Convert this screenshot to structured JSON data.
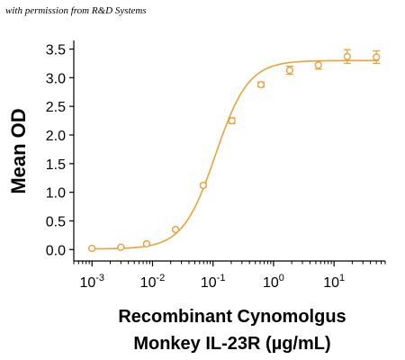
{
  "credit": "with permission from R&D Systems",
  "colors": {
    "series": "#E8A33D",
    "axis": "#000000"
  },
  "chart_data": {
    "type": "scatter",
    "x_scale": "log",
    "xlim": [
      0.0005,
      70
    ],
    "ylim": [
      -0.2,
      3.65
    ],
    "x_ticks": [
      {
        "value": 0.001,
        "base": "10",
        "exp": "-3"
      },
      {
        "value": 0.01,
        "base": "10",
        "exp": "-2"
      },
      {
        "value": 0.1,
        "base": "10",
        "exp": "-1"
      },
      {
        "value": 1,
        "base": "10",
        "exp": "0"
      },
      {
        "value": 10,
        "base": "10",
        "exp": "1"
      }
    ],
    "y_ticks": [
      {
        "value": 0.0,
        "label": "0.0"
      },
      {
        "value": 0.5,
        "label": "0.5"
      },
      {
        "value": 1.0,
        "label": "1.0"
      },
      {
        "value": 1.5,
        "label": "1.5"
      },
      {
        "value": 2.0,
        "label": "2.0"
      },
      {
        "value": 2.5,
        "label": "2.5"
      },
      {
        "value": 3.0,
        "label": "3.0"
      },
      {
        "value": 3.5,
        "label": "3.5"
      }
    ],
    "ylabel": "Mean OD",
    "xlabel_line1": "Recombinant Cynomolgus",
    "xlabel_line2": "Monkey IL-23R (µg/mL)",
    "grid": false,
    "series": [
      {
        "points": [
          {
            "x": 0.001,
            "y": 0.02,
            "err": 0.01
          },
          {
            "x": 0.003,
            "y": 0.04,
            "err": 0.01
          },
          {
            "x": 0.008,
            "y": 0.1,
            "err": 0.02
          },
          {
            "x": 0.024,
            "y": 0.35,
            "err": 0.03
          },
          {
            "x": 0.069,
            "y": 1.12,
            "err": 0.03
          },
          {
            "x": 0.205,
            "y": 2.25,
            "err": 0.05
          },
          {
            "x": 0.62,
            "y": 2.88,
            "err": 0.04
          },
          {
            "x": 1.85,
            "y": 3.13,
            "err": 0.07
          },
          {
            "x": 5.5,
            "y": 3.22,
            "err": 0.07
          },
          {
            "x": 16.5,
            "y": 3.37,
            "err": 0.12
          },
          {
            "x": 50,
            "y": 3.36,
            "err": 0.11
          }
        ],
        "fit": {
          "bottom": 0.01,
          "top": 3.3,
          "ec50": 0.11,
          "hill": 1.6
        }
      }
    ]
  }
}
